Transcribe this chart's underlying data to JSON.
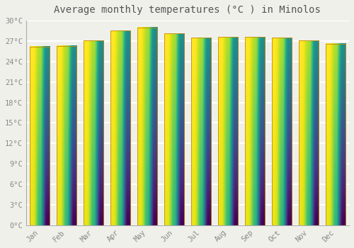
{
  "title": "Average monthly temperatures (°C ) in Minolos",
  "months": [
    "Jan",
    "Feb",
    "Mar",
    "Apr",
    "May",
    "Jun",
    "Jul",
    "Aug",
    "Sep",
    "Oct",
    "Nov",
    "Dec"
  ],
  "temperatures": [
    26.2,
    26.3,
    27.1,
    28.5,
    29.0,
    28.1,
    27.5,
    27.6,
    27.6,
    27.5,
    27.1,
    26.6
  ],
  "bar_color_bottom": "#F5A800",
  "bar_color_top": "#FFE080",
  "bar_edge_color": "#C8880A",
  "ylim": [
    0,
    30
  ],
  "yticks": [
    0,
    3,
    6,
    9,
    12,
    15,
    18,
    21,
    24,
    27,
    30
  ],
  "ytick_labels": [
    "0°C",
    "3°C",
    "6°C",
    "9°C",
    "12°C",
    "15°C",
    "18°C",
    "21°C",
    "24°C",
    "27°C",
    "30°C"
  ],
  "background_color": "#f0f0eb",
  "grid_color": "#ffffff",
  "title_fontsize": 10,
  "tick_fontsize": 7.5,
  "bar_width": 0.75,
  "gradient_steps": 100
}
